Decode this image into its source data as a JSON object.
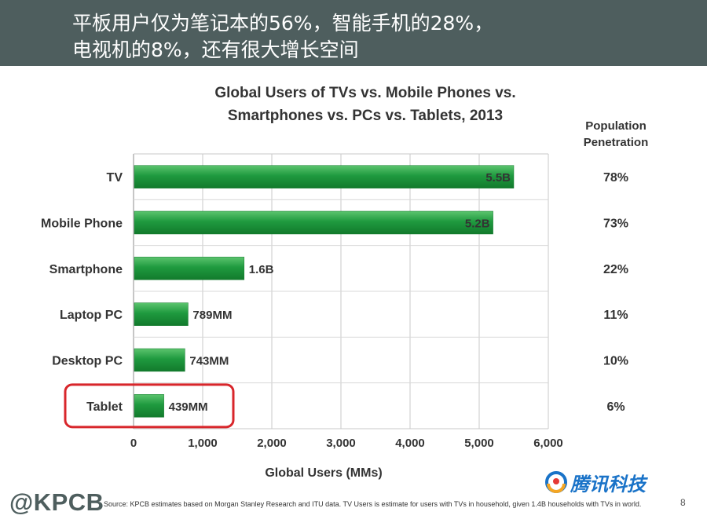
{
  "slide": {
    "headline_line1": "平板用户仅为笔记本的56%，智能手机的28%，",
    "headline_line2": "电视机的8%，还有很大增长空间",
    "brand": "@KPCB",
    "source_note": "Source: KPCB estimates based on Morgan Stanley Research and ITU data. TV Users is estimate for users with TVs in household, given 1.4B households with TVs in world.",
    "page_number": "8",
    "logo_text": "腾讯科技"
  },
  "chart_data": {
    "type": "bar",
    "orientation": "horizontal",
    "title_line1": "Global Users of TVs vs. Mobile Phones vs.",
    "title_line2": "Smartphones vs. PCs vs. Tablets, 2013",
    "penetration_header_line1": "Population",
    "penetration_header_line2": "Penetration",
    "xlabel": "Global Users (MMs)",
    "xlim": [
      0,
      6000
    ],
    "xticks": [
      0,
      1000,
      2000,
      3000,
      4000,
      5000,
      6000
    ],
    "xtick_labels": [
      "0",
      "1,000",
      "2,000",
      "3,000",
      "4,000",
      "5,000",
      "6,000"
    ],
    "categories": [
      "TV",
      "Mobile Phone",
      "Smartphone",
      "Laptop PC",
      "Desktop PC",
      "Tablet"
    ],
    "values": [
      5500,
      5200,
      1600,
      789,
      743,
      439
    ],
    "value_labels": [
      "5.5B",
      "5.2B",
      "1.6B",
      "789MM",
      "743MM",
      "439MM"
    ],
    "penetration": [
      "78%",
      "73%",
      "22%",
      "11%",
      "10%",
      "6%"
    ],
    "highlighted_category": "Tablet",
    "grid": true,
    "bar_color": "#1f9a3f",
    "highlight_color": "#d8262b"
  }
}
